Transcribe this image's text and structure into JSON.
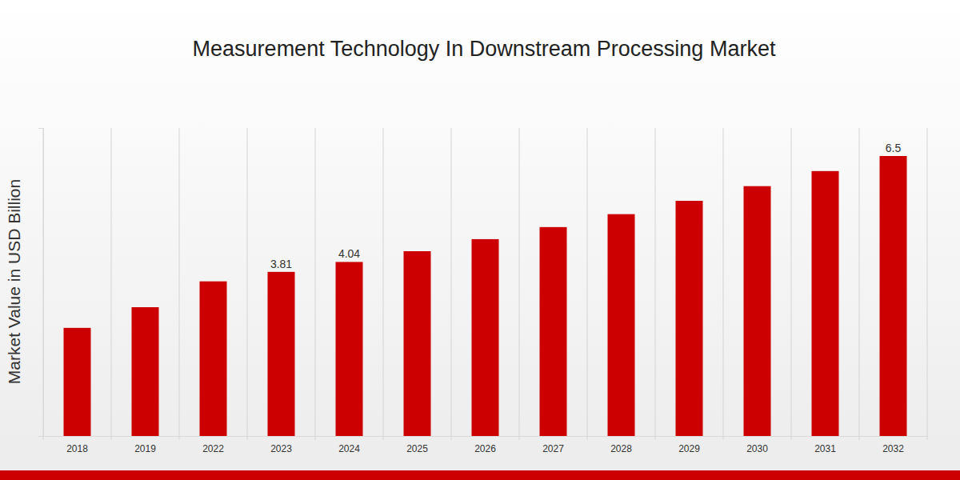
{
  "chart_data": {
    "type": "bar",
    "title": "Measurement Technology In Downstream Processing Market",
    "y_label": "Market Value in USD Billion",
    "categories": [
      "2018",
      "2019",
      "2022",
      "2023",
      "2024",
      "2025",
      "2026",
      "2027",
      "2028",
      "2029",
      "2030",
      "2031",
      "2032"
    ],
    "values": [
      2.51,
      2.99,
      3.59,
      3.81,
      4.04,
      4.29,
      4.57,
      4.85,
      5.15,
      5.46,
      5.8,
      6.15,
      6.5
    ],
    "value_labels": [
      null,
      null,
      null,
      "3.81",
      "4.04",
      null,
      null,
      null,
      null,
      null,
      null,
      null,
      "6.5"
    ],
    "color": "#cc0000",
    "ylim": [
      0,
      7.15
    ],
    "grid": true,
    "data_labels": true,
    "tick_labels": "x"
  }
}
